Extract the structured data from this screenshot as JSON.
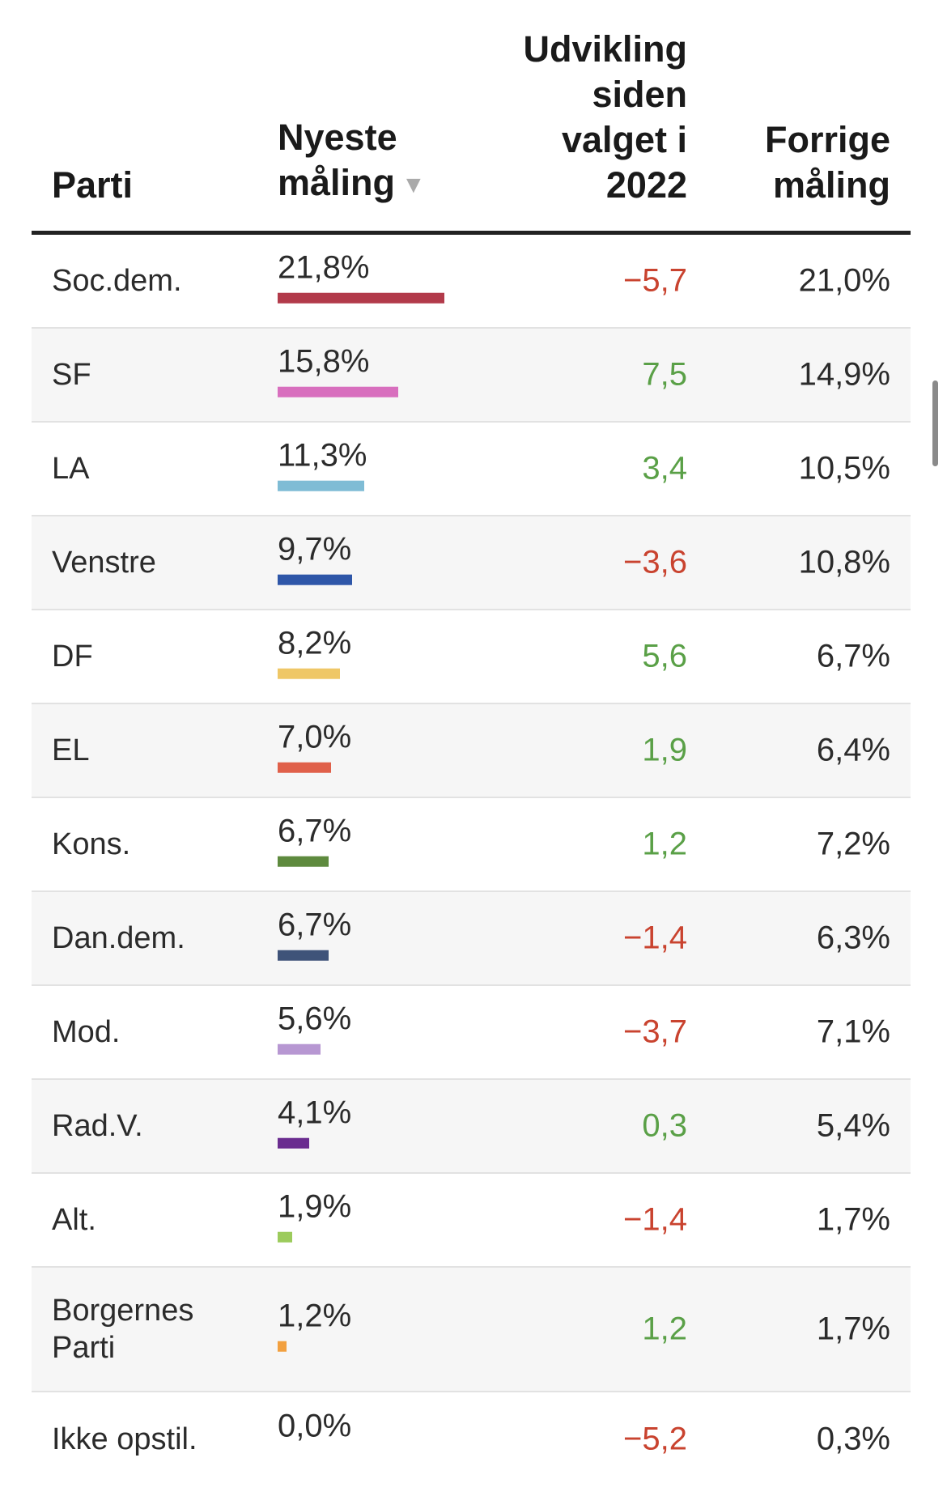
{
  "chart_data": {
    "type": "table",
    "columns": {
      "parti": "Parti",
      "nyeste": "Nyeste måling",
      "udvikling": "Udvikling siden valget i 2022",
      "forrige": "Forrige måling"
    },
    "sort_indicator": "▼",
    "bar_max_value": 21.8,
    "rows": [
      {
        "party": "Soc.dem.",
        "newest": 21.8,
        "newest_label": "21,8%",
        "change": "-5,7",
        "change_sign": "neg",
        "previous": "21,0%",
        "color": "#b23a4a"
      },
      {
        "party": "SF",
        "newest": 15.8,
        "newest_label": "15,8%",
        "change": "7,5",
        "change_sign": "pos",
        "previous": "14,9%",
        "color": "#d86fbe"
      },
      {
        "party": "LA",
        "newest": 11.3,
        "newest_label": "11,3%",
        "change": "3,4",
        "change_sign": "pos",
        "previous": "10,5%",
        "color": "#7fbcd5"
      },
      {
        "party": "Venstre",
        "newest": 9.7,
        "newest_label": "9,7%",
        "change": "-3,6",
        "change_sign": "neg",
        "previous": "10,8%",
        "color": "#2e56a8"
      },
      {
        "party": "DF",
        "newest": 8.2,
        "newest_label": "8,2%",
        "change": "5,6",
        "change_sign": "pos",
        "previous": "6,7%",
        "color": "#efc766"
      },
      {
        "party": "EL",
        "newest": 7.0,
        "newest_label": "7,0%",
        "change": "1,9",
        "change_sign": "pos",
        "previous": "6,4%",
        "color": "#e0604a"
      },
      {
        "party": "Kons.",
        "newest": 6.7,
        "newest_label": "6,7%",
        "change": "1,2",
        "change_sign": "pos",
        "previous": "7,2%",
        "color": "#5e8a3e"
      },
      {
        "party": "Dan.dem.",
        "newest": 6.7,
        "newest_label": "6,7%",
        "change": "-1,4",
        "change_sign": "neg",
        "previous": "6,3%",
        "color": "#3f5379"
      },
      {
        "party": "Mod.",
        "newest": 5.6,
        "newest_label": "5,6%",
        "change": "-3,7",
        "change_sign": "neg",
        "previous": "7,1%",
        "color": "#b797d2"
      },
      {
        "party": "Rad.V.",
        "newest": 4.1,
        "newest_label": "4,1%",
        "change": "0,3",
        "change_sign": "pos",
        "previous": "5,4%",
        "color": "#6a2c8f"
      },
      {
        "party": "Alt.",
        "newest": 1.9,
        "newest_label": "1,9%",
        "change": "-1,4",
        "change_sign": "neg",
        "previous": "1,7%",
        "color": "#9ccb5c"
      },
      {
        "party": "Borgernes Parti",
        "newest": 1.2,
        "newest_label": "1,2%",
        "change": "1,2",
        "change_sign": "pos",
        "previous": "1,7%",
        "color": "#f2a03f"
      },
      {
        "party": "Ikke opstil.",
        "newest": 0.0,
        "newest_label": "0,0%",
        "change": "-5,2",
        "change_sign": "neg",
        "previous": "0,3%",
        "color": "#cccccc"
      }
    ]
  }
}
